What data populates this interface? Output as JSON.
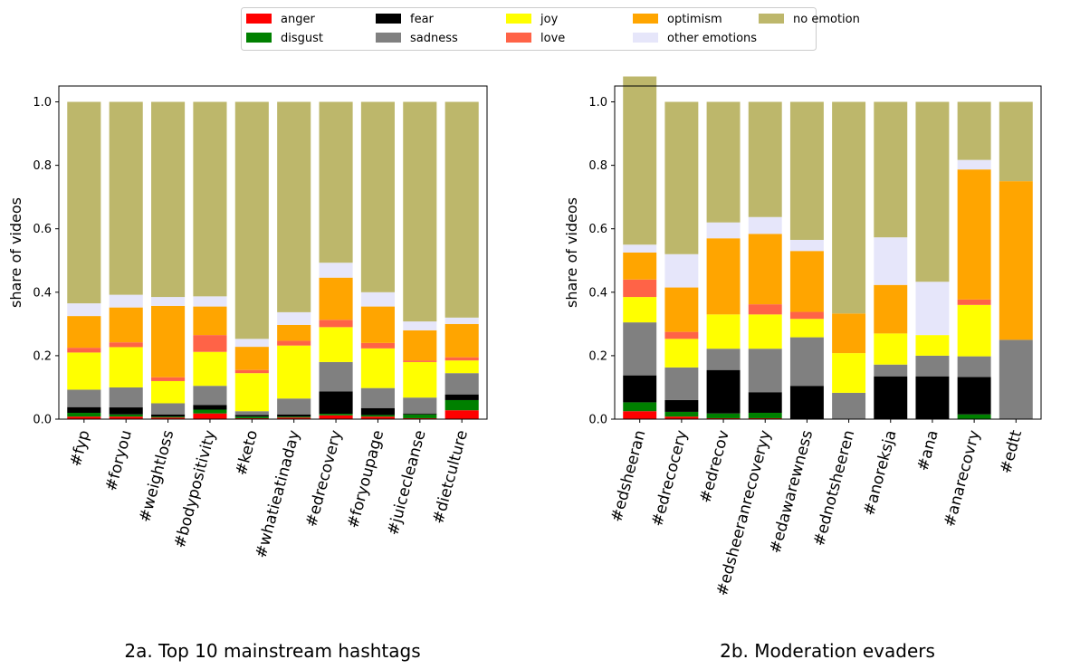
{
  "legend": {
    "entries": [
      {
        "label": "anger",
        "color": "#ff0000"
      },
      {
        "label": "disgust",
        "color": "#008000"
      },
      {
        "label": "fear",
        "color": "#000000"
      },
      {
        "label": "sadness",
        "color": "#808080"
      },
      {
        "label": "joy",
        "color": "#ffff00"
      },
      {
        "label": "love",
        "color": "#ff6347"
      },
      {
        "label": "optimism",
        "color": "#ffa500"
      },
      {
        "label": "other emotions",
        "color": "#e6e6fa"
      },
      {
        "label": "no emotion",
        "color": "#bdb76b"
      }
    ]
  },
  "chart_data": [
    {
      "type": "bar",
      "stacked": true,
      "caption": "2a. Top 10 mainstream hashtags",
      "ylabel": "share of videos",
      "ylim": [
        0,
        1.05
      ],
      "yticks": [
        "0.0",
        "0.2",
        "0.4",
        "0.6",
        "0.8",
        "1.0"
      ],
      "categories": [
        "#fyp",
        "#foryou",
        "#weightloss",
        "#bodypositivity",
        "#keto",
        "#whatieatinaday",
        "#edrecovery",
        "#foryoupage",
        "#juicecleanse",
        "#dietculture"
      ],
      "series": [
        {
          "name": "anger",
          "values": [
            0.008,
            0.008,
            0.005,
            0.018,
            0.003,
            0.005,
            0.012,
            0.008,
            0.003,
            0.028
          ]
        },
        {
          "name": "disgust",
          "values": [
            0.012,
            0.007,
            0.003,
            0.012,
            0.005,
            0.003,
            0.005,
            0.005,
            0.012,
            0.032
          ]
        },
        {
          "name": "fear",
          "values": [
            0.018,
            0.022,
            0.007,
            0.015,
            0.005,
            0.007,
            0.07,
            0.022,
            0.003,
            0.018
          ]
        },
        {
          "name": "sadness",
          "values": [
            0.055,
            0.063,
            0.035,
            0.06,
            0.012,
            0.05,
            0.093,
            0.063,
            0.05,
            0.067
          ]
        },
        {
          "name": "joy",
          "values": [
            0.117,
            0.127,
            0.07,
            0.107,
            0.12,
            0.167,
            0.11,
            0.125,
            0.112,
            0.04
          ]
        },
        {
          "name": "love",
          "values": [
            0.015,
            0.015,
            0.012,
            0.053,
            0.01,
            0.015,
            0.023,
            0.017,
            0.005,
            0.01
          ]
        },
        {
          "name": "optimism",
          "values": [
            0.1,
            0.11,
            0.225,
            0.09,
            0.073,
            0.05,
            0.133,
            0.115,
            0.095,
            0.105
          ]
        },
        {
          "name": "other emotions",
          "values": [
            0.04,
            0.04,
            0.028,
            0.032,
            0.025,
            0.04,
            0.047,
            0.045,
            0.028,
            0.02
          ]
        },
        {
          "name": "no emotion",
          "values": [
            0.635,
            0.608,
            0.615,
            0.613,
            0.747,
            0.663,
            0.507,
            0.6,
            0.692,
            0.68
          ]
        }
      ]
    },
    {
      "type": "bar",
      "stacked": true,
      "caption": "2b. Moderation evaders",
      "ylabel": "share of videos",
      "ylim": [
        0,
        1.05
      ],
      "yticks": [
        "0.0",
        "0.2",
        "0.4",
        "0.6",
        "0.8",
        "1.0"
      ],
      "categories": [
        "#edsheeran",
        "#edrecocery",
        "#edrecov",
        "#edsheeranrecoveryy",
        "#edawarewness",
        "#ednotsheeren",
        "#anoreksja",
        "#ana",
        "#anarecovry",
        "#edtt"
      ],
      "series": [
        {
          "name": "anger",
          "values": [
            0.025,
            0.008,
            0.003,
            0.003,
            0.0,
            0.0,
            0.0,
            0.0,
            0.0,
            0.0
          ]
        },
        {
          "name": "disgust",
          "values": [
            0.028,
            0.015,
            0.015,
            0.017,
            0.0,
            0.0,
            0.0,
            0.0,
            0.015,
            0.0
          ]
        },
        {
          "name": "fear",
          "values": [
            0.085,
            0.037,
            0.137,
            0.065,
            0.105,
            0.0,
            0.135,
            0.135,
            0.118,
            0.0
          ]
        },
        {
          "name": "sadness",
          "values": [
            0.167,
            0.103,
            0.067,
            0.137,
            0.153,
            0.083,
            0.037,
            0.065,
            0.065,
            0.25
          ]
        },
        {
          "name": "joy",
          "values": [
            0.08,
            0.09,
            0.108,
            0.108,
            0.058,
            0.125,
            0.098,
            0.065,
            0.162,
            0.0
          ]
        },
        {
          "name": "love",
          "values": [
            0.055,
            0.022,
            0.0,
            0.032,
            0.022,
            0.0,
            0.0,
            0.0,
            0.017,
            0.0
          ]
        },
        {
          "name": "optimism",
          "values": [
            0.085,
            0.14,
            0.24,
            0.222,
            0.192,
            0.125,
            0.153,
            0.0,
            0.41,
            0.5
          ]
        },
        {
          "name": "other emotions",
          "values": [
            0.025,
            0.105,
            0.05,
            0.053,
            0.035,
            0.0,
            0.15,
            0.168,
            0.03,
            0.0
          ]
        },
        {
          "name": "no emotion",
          "values": [
            0.53,
            0.48,
            0.38,
            0.363,
            0.435,
            0.667,
            0.427,
            0.567,
            0.183,
            0.25
          ]
        }
      ]
    }
  ]
}
